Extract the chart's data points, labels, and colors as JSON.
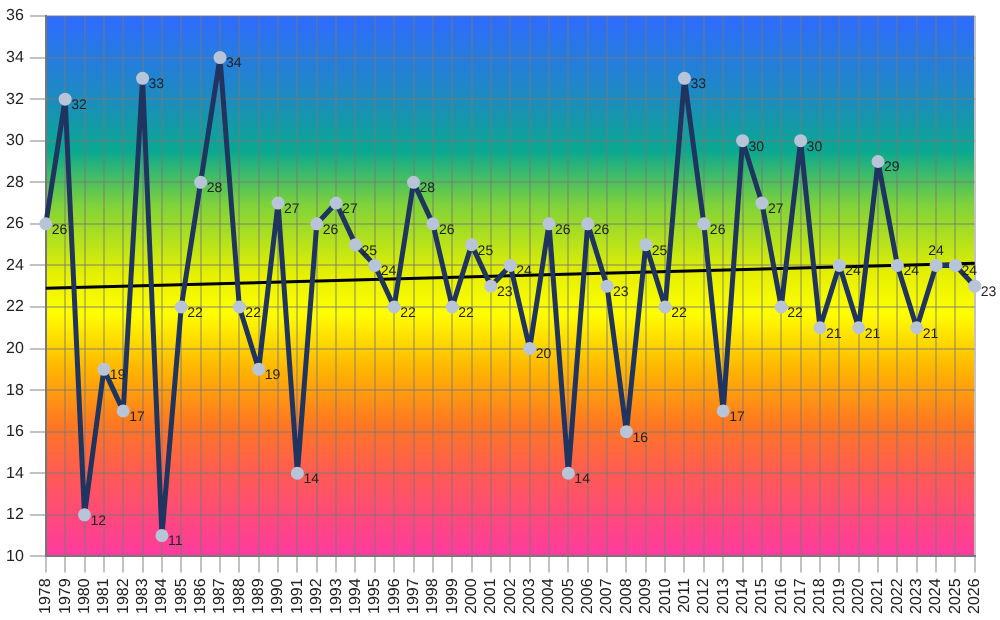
{
  "chart_data": {
    "type": "line",
    "categories": [
      "1978",
      "1979",
      "1980",
      "1981",
      "1982",
      "1983",
      "1984",
      "1985",
      "1986",
      "1987",
      "1988",
      "1989",
      "1990",
      "1991",
      "1992",
      "1993",
      "1994",
      "1995",
      "1996",
      "1997",
      "1998",
      "1999",
      "2000",
      "2001",
      "2002",
      "2003",
      "2004",
      "2005",
      "2006",
      "2007",
      "2008",
      "2009",
      "2010",
      "2011",
      "2012",
      "2013",
      "2014",
      "2015",
      "2016",
      "2017",
      "2018",
      "2019",
      "2020",
      "2021",
      "2022",
      "2023",
      "2024",
      "2025",
      "2026"
    ],
    "series": [
      {
        "color": "#1f3560",
        "marker": "circle",
        "data_labels": true,
        "values": [
          26,
          32,
          12,
          19,
          17,
          33,
          11,
          22,
          28,
          34,
          22,
          19,
          27,
          14,
          26,
          27,
          25,
          24,
          22,
          28,
          26,
          22,
          25,
          23,
          24,
          20,
          26,
          14,
          26,
          23,
          16,
          25,
          22,
          33,
          26,
          17,
          30,
          27,
          22,
          30,
          21,
          24,
          21,
          29,
          24,
          21,
          24,
          24,
          23
        ]
      },
      {
        "color": "#000000",
        "marker": "none",
        "values": [
          22.9,
          null,
          null,
          null,
          null,
          null,
          null,
          null,
          null,
          null,
          null,
          null,
          null,
          null,
          null,
          null,
          null,
          null,
          null,
          null,
          null,
          null,
          null,
          null,
          null,
          null,
          null,
          null,
          null,
          null,
          null,
          null,
          null,
          null,
          null,
          null,
          null,
          null,
          null,
          null,
          null,
          null,
          null,
          null,
          null,
          null,
          null,
          null,
          24.1
        ]
      }
    ],
    "ylim": [
      10,
      36
    ],
    "yticks": [
      10,
      12,
      14,
      16,
      18,
      20,
      22,
      24,
      26,
      28,
      30,
      32,
      34,
      36
    ],
    "grid": true,
    "legend": false
  }
}
